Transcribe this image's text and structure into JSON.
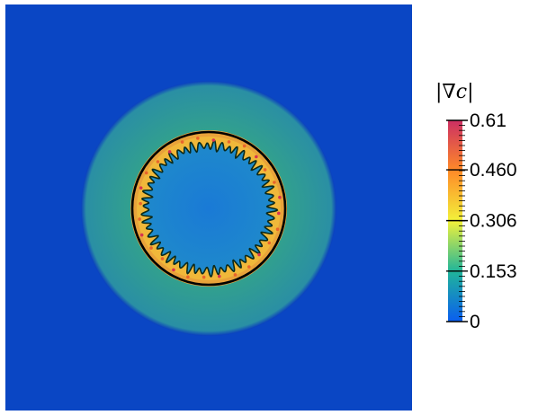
{
  "colorbar": {
    "title_prefix": "|∇",
    "title_var": "c",
    "title_suffix": "|",
    "ticks": [
      "0.61",
      "0.460",
      "0.306",
      "0.153",
      "0"
    ],
    "tick_values": [
      0.61,
      0.46,
      0.306,
      0.153,
      0
    ],
    "range": [
      0,
      0.61
    ],
    "colors": {
      "low": "#0a5ef0",
      "mid_low": "#20b59a",
      "mid": "#f2f23a",
      "mid_high": "#ff8a28",
      "high": "#cc2f63"
    }
  },
  "plot": {
    "background_color": "#0a3fbf",
    "halo_color": "#34a389",
    "ring_color": "#f0a93c",
    "interior_color": "#1c7ed4",
    "contour_color": "#000000"
  }
}
